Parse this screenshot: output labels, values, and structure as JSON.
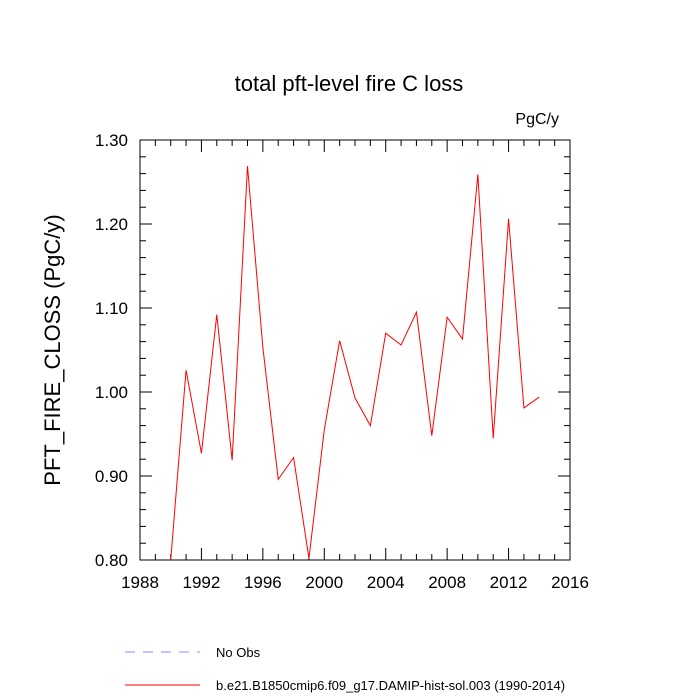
{
  "chart_data": {
    "type": "line",
    "title": "total pft-level fire C loss",
    "units": "PgC/y",
    "ylabel": "PFT_FIRE_CLOSS  (PgC/y)",
    "xlabel": "",
    "xlim": [
      1988,
      2016
    ],
    "ylim": [
      0.8,
      1.3
    ],
    "x_ticks": [
      "1988",
      "1992",
      "1996",
      "2000",
      "2004",
      "2008",
      "2012",
      "2016"
    ],
    "y_ticks": [
      "0.80",
      "0.90",
      "1.00",
      "1.10",
      "1.20",
      "1.30"
    ],
    "grid": false,
    "legend_position": "bottom",
    "series": [
      {
        "name": "b.e21.B1850cmip6.f09_g17.DAMIP-hist-sol.003 (1990-2014)",
        "color": "#ff0000",
        "style": "solid",
        "x": [
          1990,
          1991,
          1992,
          1993,
          1994,
          1995,
          1996,
          1997,
          1998,
          1999,
          2000,
          2001,
          2002,
          2003,
          2004,
          2005,
          2006,
          2007,
          2008,
          2009,
          2010,
          2011,
          2012,
          2013,
          2014
        ],
        "values": [
          0.8,
          1.026,
          0.927,
          1.092,
          0.919,
          1.269,
          1.053,
          0.896,
          0.922,
          0.802,
          0.955,
          1.061,
          0.993,
          0.96,
          1.07,
          1.056,
          1.095,
          0.948,
          1.089,
          1.063,
          1.259,
          0.945,
          1.206,
          0.981,
          0.994
        ]
      },
      {
        "name": "No Obs",
        "color": "#8888ff",
        "style": "dashed",
        "x": [],
        "values": []
      }
    ]
  }
}
